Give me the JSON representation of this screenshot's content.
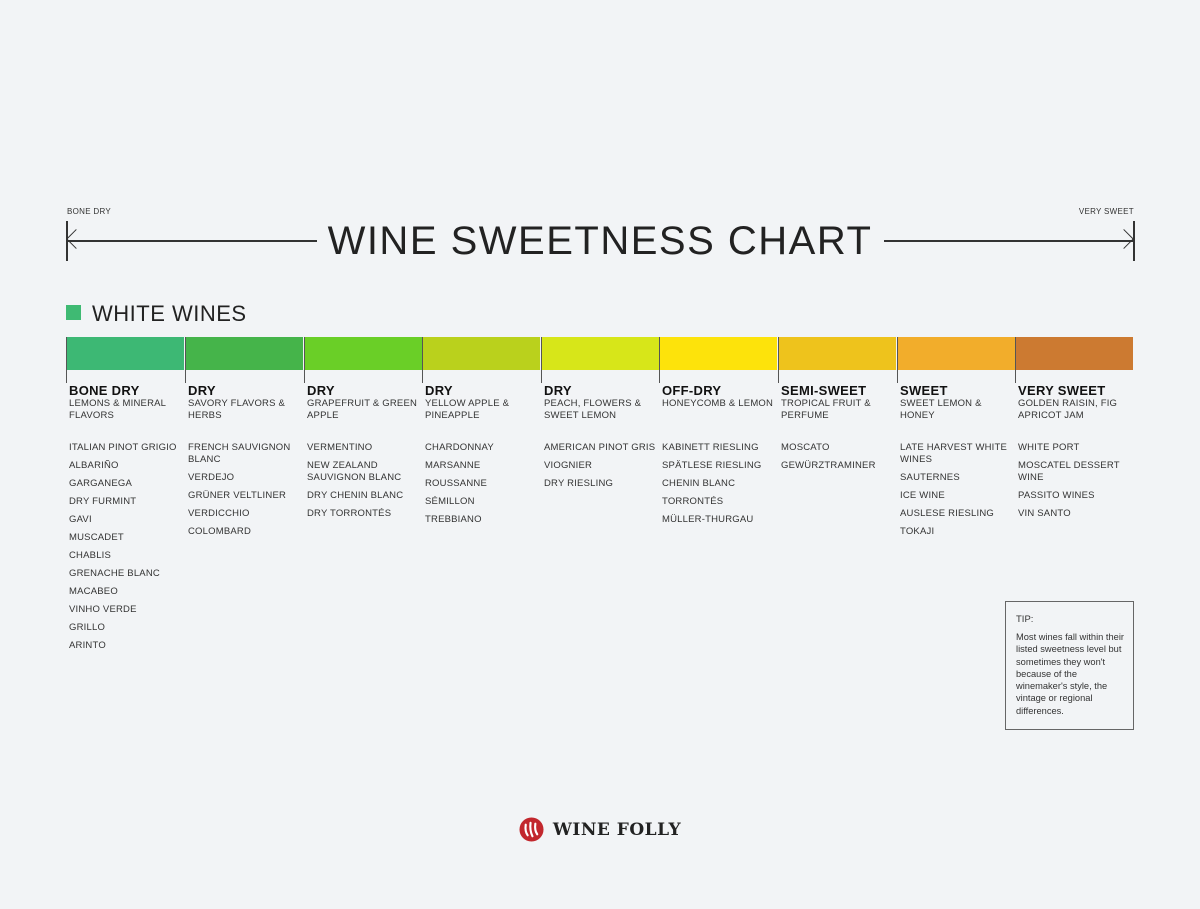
{
  "header": {
    "title": "WINE SWEETNESS CHART",
    "scale_left": "BONE DRY",
    "scale_right": "VERY SWEET"
  },
  "legend": {
    "label": "WHITE WINES",
    "color": "#3fba73"
  },
  "columns": [
    {
      "level": "BONE DRY",
      "flavor": "LEMONS & MINERAL FLAVORS",
      "color": "#3db874",
      "wines": [
        "ITALIAN PINOT GRIGIO",
        "ALBARIÑO",
        "GARGANEGA",
        "DRY FURMINT",
        "GAVI",
        "MUSCADET",
        "CHABLIS",
        "GRENACHE BLANC",
        "MACABEO",
        "VINHO VERDE",
        "GRILLO",
        "ARINTO"
      ]
    },
    {
      "level": "DRY",
      "flavor": "SAVORY FLAVORS & HERBS",
      "color": "#45b44a",
      "wines": [
        "FRENCH SAUVIGNON BLANC",
        "VERDEJO",
        "GRÜNER VELTLINER",
        "VERDICCHIO",
        "COLOMBARD"
      ]
    },
    {
      "level": "DRY",
      "flavor": "GRAPEFRUIT & GREEN APPLE",
      "color": "#6acf27",
      "wines": [
        "VERMENTINO",
        "NEW ZEALAND SAUVIGNON BLANC",
        "DRY CHENIN BLANC",
        "DRY TORRONTÉS"
      ]
    },
    {
      "level": "DRY",
      "flavor": "YELLOW APPLE & PINEAPPLE",
      "color": "#bad11c",
      "wines": [
        "CHARDONNAY",
        "MARSANNE",
        "ROUSSANNE",
        "SÉMILLON",
        "TREBBIANO"
      ]
    },
    {
      "level": "DRY",
      "flavor": "PEACH, FLOWERS & SWEET LEMON",
      "color": "#d7e619",
      "wines": [
        "AMERICAN PINOT GRIS",
        "VIOGNIER",
        "DRY RIESLING"
      ]
    },
    {
      "level": "OFF-DRY",
      "flavor": "HONEYCOMB & LEMON",
      "color": "#fde30b",
      "wines": [
        "KABINETT RIESLING",
        "SPÄTLESE RIESLING",
        "CHENIN BLANC",
        "TORRONTÉS",
        "MÜLLER-THURGAU"
      ]
    },
    {
      "level": "SEMI-SWEET",
      "flavor": "TROPICAL FRUIT & PERFUME",
      "color": "#eec31c",
      "wines": [
        "MOSCATO",
        "GEWÜRZTRAMINER"
      ]
    },
    {
      "level": "SWEET",
      "flavor": "SWEET LEMON & HONEY",
      "color": "#f2ad2b",
      "wines": [
        "LATE HARVEST WHITE WINES",
        "SAUTERNES",
        "ICE WINE",
        "AUSLESE RIESLING",
        "TOKAJI"
      ]
    },
    {
      "level": "VERY SWEET",
      "flavor": "GOLDEN RAISIN, FIG APRICOT JAM",
      "color": "#cc7a31",
      "wines": [
        "WHITE PORT",
        "MOSCATEL DESSERT WINE",
        "PASSITO WINES",
        "VIN SANTO"
      ]
    }
  ],
  "tip": {
    "title": "TIP:",
    "text": "Most wines fall within their listed sweetness level but sometimes they won't because of the winemaker's style, the vintage or regional differences."
  },
  "brand": {
    "name": "WINE FOLLY",
    "logo_color": "#c2272d"
  }
}
